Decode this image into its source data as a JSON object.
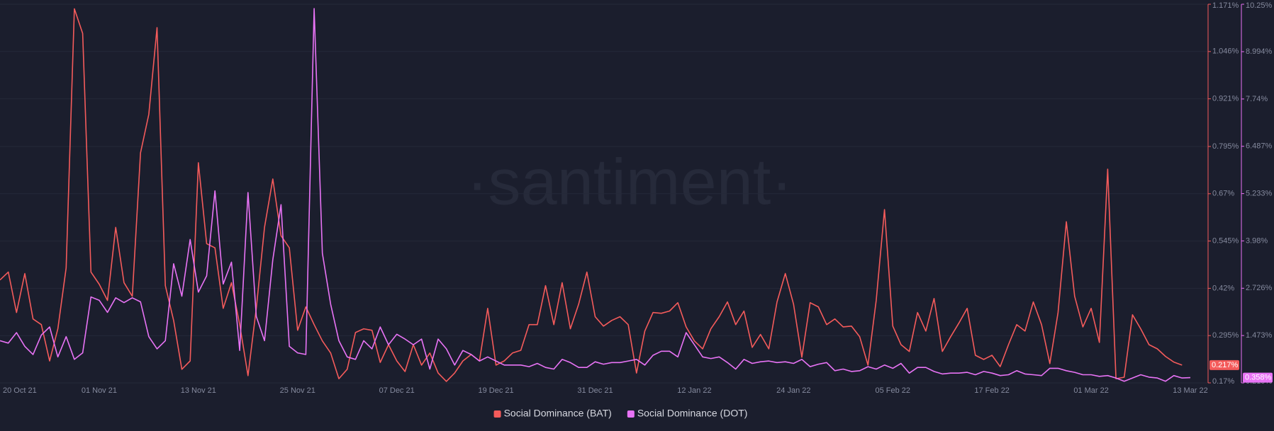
{
  "chart_data": {
    "type": "line",
    "watermark": "·santiment·",
    "categories": [
      "20 Oct 21",
      null,
      null,
      null,
      null,
      null,
      null,
      null,
      null,
      null,
      null,
      null,
      "01 Nov 21",
      null,
      null,
      null,
      null,
      null,
      null,
      null,
      null,
      null,
      null,
      null,
      "13 Nov 21",
      null,
      null,
      null,
      null,
      null,
      null,
      null,
      null,
      null,
      null,
      null,
      "25 Nov 21",
      null,
      null,
      null,
      null,
      null,
      null,
      null,
      null,
      null,
      null,
      null,
      "07 Dec 21",
      null,
      null,
      null,
      null,
      null,
      null,
      null,
      null,
      null,
      null,
      null,
      "19 Dec 21",
      null,
      null,
      null,
      null,
      null,
      null,
      null,
      null,
      null,
      null,
      null,
      "31 Dec 21",
      null,
      null,
      null,
      null,
      null,
      null,
      null,
      null,
      null,
      null,
      null,
      "12 Jan 22",
      null,
      null,
      null,
      null,
      null,
      null,
      null,
      null,
      null,
      null,
      null,
      "24 Jan 22",
      null,
      null,
      null,
      null,
      null,
      null,
      null,
      null,
      null,
      null,
      null,
      "05 Feb 22",
      null,
      null,
      null,
      null,
      null,
      null,
      null,
      null,
      null,
      null,
      null,
      "17 Feb 22",
      null,
      null,
      null,
      null,
      null,
      null,
      null,
      null,
      null,
      null,
      null,
      "01 Mar 22",
      null,
      null,
      null,
      null,
      null,
      null,
      null,
      null,
      null,
      null,
      null,
      "13 Mar 22"
    ],
    "ylim": [
      0.17,
      1.171
    ],
    "yticks": [
      {
        "value": 0.17,
        "label": "0.17%"
      },
      {
        "value": 0.295,
        "label": "0.295%"
      },
      {
        "value": 0.42,
        "label": "0.42%"
      },
      {
        "value": 0.545,
        "label": "0.545%"
      },
      {
        "value": 0.67,
        "label": "0.67%"
      },
      {
        "value": 0.795,
        "label": "0.795%"
      },
      {
        "value": 0.921,
        "label": "0.921%"
      },
      {
        "value": 1.046,
        "label": "1.046%"
      },
      {
        "value": 1.171,
        "label": "1.171%"
      }
    ],
    "y2lim": [
      0.219,
      10.25
    ],
    "y2ticks": [
      {
        "value": 0.219,
        "label": "0.219%"
      },
      {
        "value": 1.473,
        "label": "1.473%"
      },
      {
        "value": 2.726,
        "label": "2.726%"
      },
      {
        "value": 3.98,
        "label": "3.98%"
      },
      {
        "value": 5.233,
        "label": "5.233%"
      },
      {
        "value": 6.487,
        "label": "6.487%"
      },
      {
        "value": 7.74,
        "label": "7.74%"
      },
      {
        "value": 8.994,
        "label": "8.994%"
      },
      {
        "value": 10.25,
        "label": "10.25%"
      }
    ],
    "grid": true,
    "legend": "bottom",
    "series": [
      {
        "name": "Social Dominance (BAT)",
        "color": "#f45b5b",
        "axis": "y",
        "last_label": "0.217%",
        "values": [
          0.442,
          0.463,
          0.356,
          0.459,
          0.339,
          0.324,
          0.228,
          0.313,
          0.474,
          1.159,
          1.094,
          0.463,
          0.431,
          0.388,
          0.581,
          0.435,
          0.399,
          0.778,
          0.88,
          1.109,
          0.427,
          0.335,
          0.206,
          0.228,
          0.752,
          0.538,
          0.527,
          0.367,
          0.435,
          0.324,
          0.189,
          0.367,
          0.581,
          0.709,
          0.559,
          0.527,
          0.309,
          0.371,
          0.324,
          0.281,
          0.249,
          0.181,
          0.206,
          0.303,
          0.313,
          0.309,
          0.224,
          0.271,
          0.228,
          0.2,
          0.271,
          0.217,
          0.249,
          0.196,
          0.174,
          0.196,
          0.228,
          0.245,
          0.228,
          0.367,
          0.217,
          0.228,
          0.249,
          0.256,
          0.324,
          0.324,
          0.427,
          0.324,
          0.435,
          0.313,
          0.378,
          0.463,
          0.345,
          0.32,
          0.335,
          0.345,
          0.324,
          0.196,
          0.307,
          0.356,
          0.354,
          0.36,
          0.382,
          0.318,
          0.281,
          0.26,
          0.313,
          0.345,
          0.384,
          0.324,
          0.36,
          0.264,
          0.298,
          0.26,
          0.384,
          0.459,
          0.378,
          0.238,
          0.382,
          0.371,
          0.324,
          0.339,
          0.318,
          0.32,
          0.292,
          0.217,
          0.388,
          0.628,
          0.32,
          0.271,
          0.253,
          0.356,
          0.307,
          0.393,
          0.253,
          0.292,
          0.328,
          0.367,
          0.243,
          0.232,
          0.243,
          0.213,
          0.271,
          0.324,
          0.307,
          0.384,
          0.324,
          0.221,
          0.356,
          0.596,
          0.399,
          0.318,
          0.367,
          0.277,
          0.735,
          0.181,
          0.185,
          0.35,
          0.313,
          0.271,
          0.26,
          0.24,
          0.225,
          0.217,
          null
        ]
      },
      {
        "name": "Social Dominance (DOT)",
        "color": "#e873f5",
        "axis": "y2",
        "last_label": "0.358%",
        "values": [
          1.336,
          1.272,
          1.551,
          1.186,
          0.971,
          1.486,
          1.701,
          0.907,
          1.443,
          0.842,
          1.014,
          2.495,
          2.409,
          2.087,
          2.473,
          2.345,
          2.473,
          2.366,
          1.443,
          1.121,
          1.336,
          3.375,
          2.516,
          4.018,
          2.624,
          3.053,
          5.306,
          2.838,
          3.418,
          1.078,
          5.263,
          1.98,
          1.336,
          3.482,
          4.941,
          1.186,
          1.014,
          0.971,
          10.135,
          3.654,
          2.302,
          1.336,
          0.907,
          0.842,
          1.336,
          1.121,
          1.701,
          1.229,
          1.508,
          1.379,
          1.229,
          1.379,
          0.585,
          1.379,
          1.121,
          0.692,
          1.078,
          0.971,
          0.799,
          0.907,
          0.799,
          0.692,
          0.692,
          0.692,
          0.649,
          0.735,
          0.628,
          0.585,
          0.842,
          0.757,
          0.628,
          0.628,
          0.778,
          0.714,
          0.757,
          0.757,
          0.799,
          0.842,
          0.692,
          0.95,
          1.057,
          1.057,
          0.907,
          1.551,
          1.229,
          0.907,
          0.864,
          0.907,
          0.757,
          0.585,
          0.842,
          0.735,
          0.778,
          0.799,
          0.757,
          0.778,
          0.735,
          0.842,
          0.649,
          0.714,
          0.757,
          0.542,
          0.585,
          0.52,
          0.542,
          0.649,
          0.585,
          0.692,
          0.606,
          0.735,
          0.478,
          0.628,
          0.628,
          0.52,
          0.456,
          0.478,
          0.478,
          0.499,
          0.435,
          0.52,
          0.478,
          0.413,
          0.435,
          0.542,
          0.456,
          0.435,
          0.413,
          0.606,
          0.606,
          0.542,
          0.499,
          0.435,
          0.435,
          0.392,
          0.413,
          0.349,
          0.263,
          0.349,
          0.435,
          0.37,
          0.349,
          0.263,
          0.413,
          0.349,
          0.358
        ]
      }
    ]
  }
}
